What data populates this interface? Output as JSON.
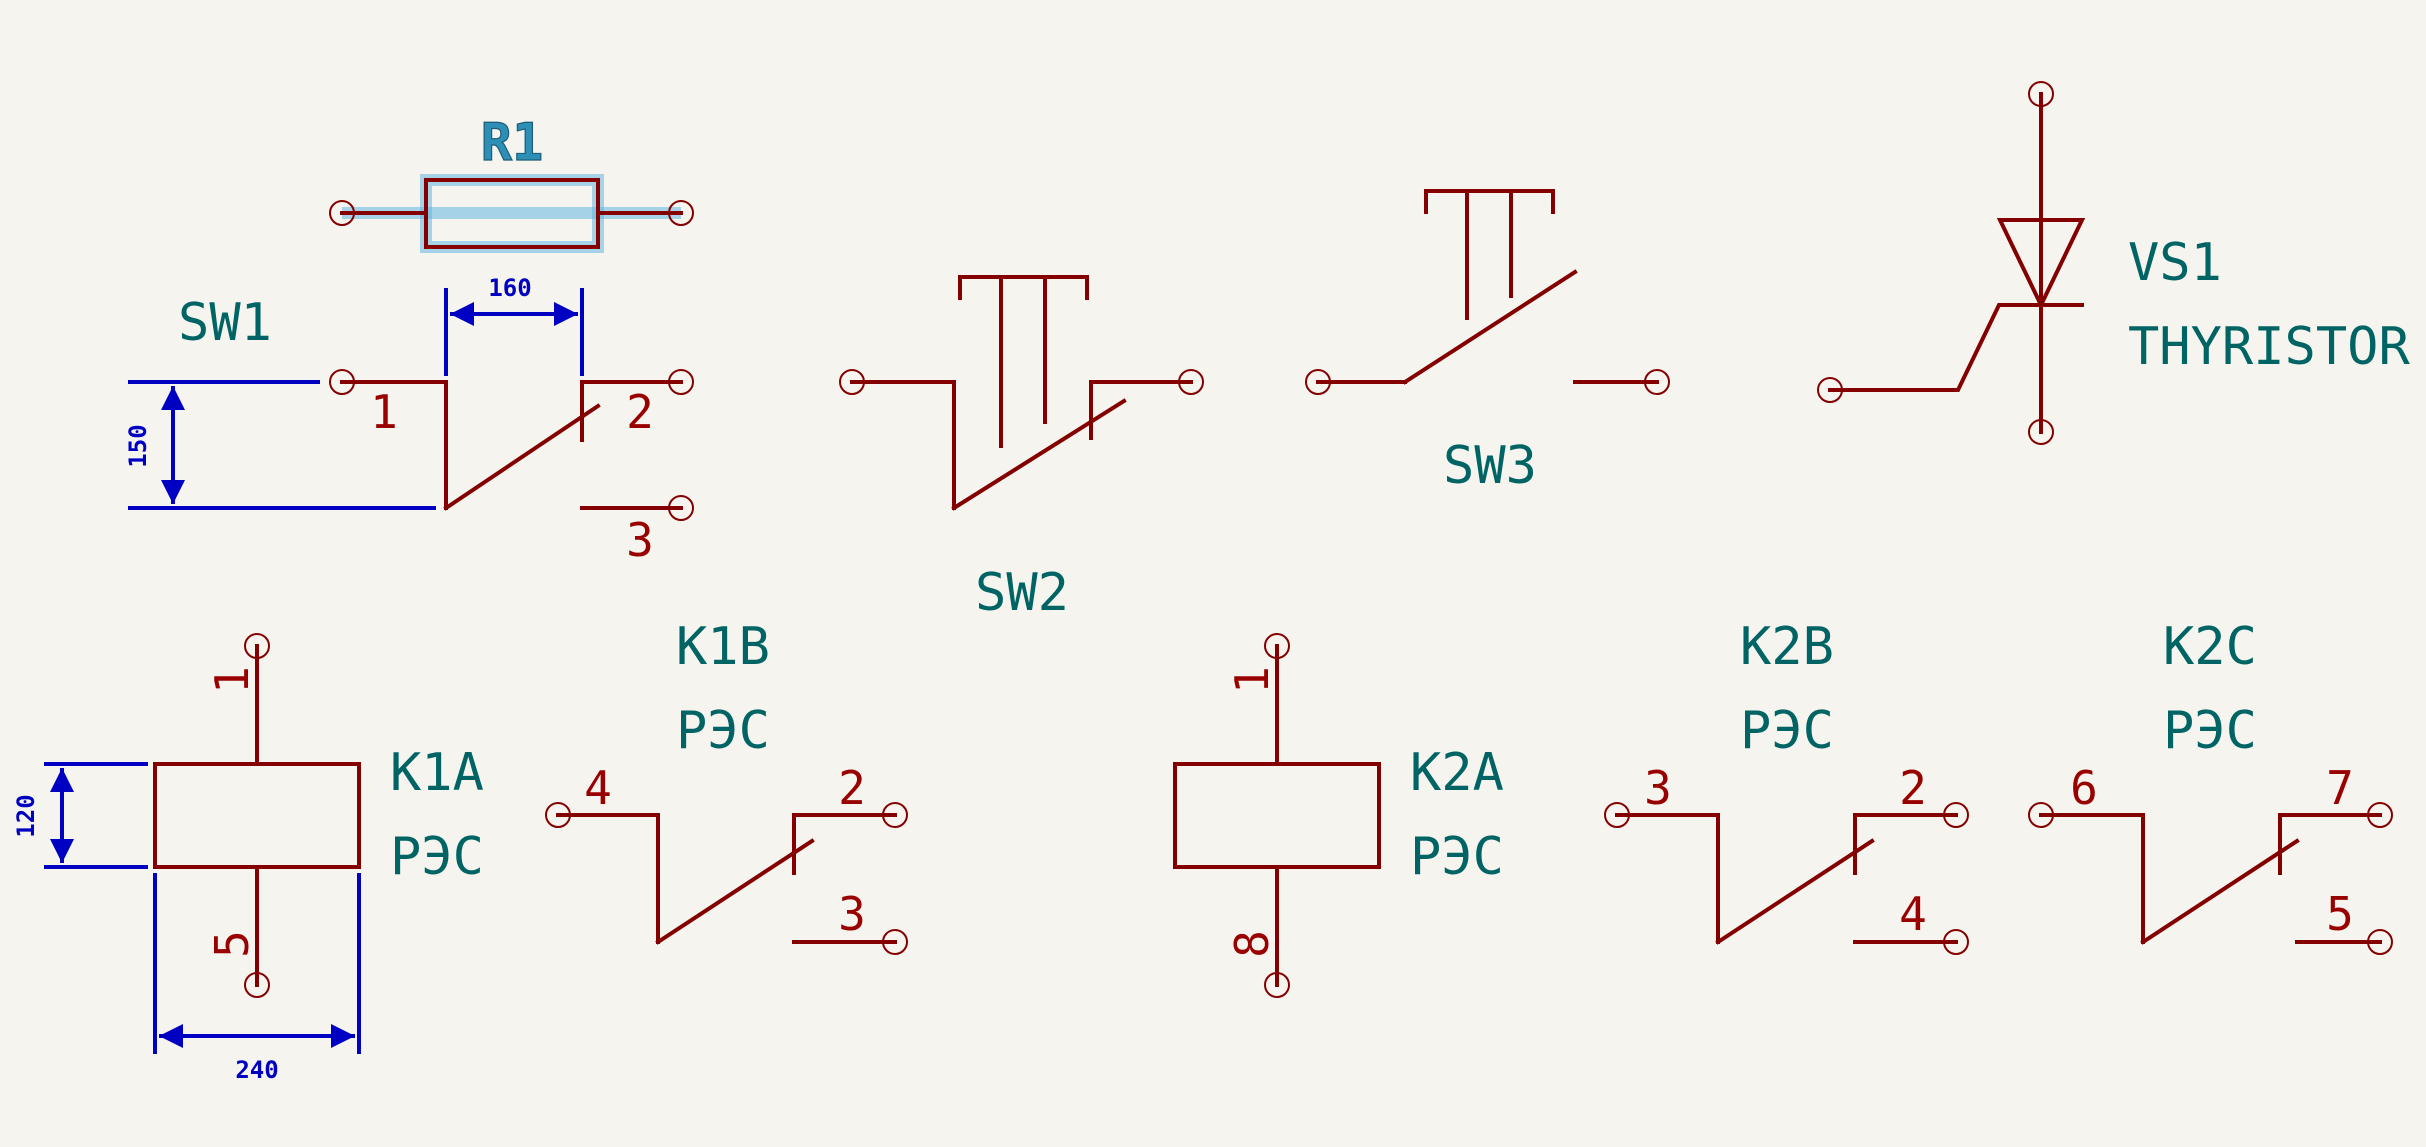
{
  "components": {
    "r1": {
      "ref": "R1"
    },
    "sw1": {
      "ref": "SW1",
      "pins": [
        "1",
        "2",
        "3"
      ]
    },
    "sw2": {
      "ref": "SW2"
    },
    "sw3": {
      "ref": "SW3"
    },
    "vs1": {
      "ref": "VS1",
      "value": "THYRISTOR"
    },
    "k1a": {
      "ref": "K1A",
      "value": "РЭС",
      "pins": [
        "1",
        "5"
      ]
    },
    "k1b": {
      "ref": "K1B",
      "value": "РЭС",
      "pins": [
        "4",
        "2",
        "3"
      ]
    },
    "k2a": {
      "ref": "K2A",
      "value": "РЭС",
      "pins": [
        "1",
        "8"
      ]
    },
    "k2b": {
      "ref": "K2B",
      "value": "РЭС",
      "pins": [
        "3",
        "2",
        "4"
      ]
    },
    "k2c": {
      "ref": "K2C",
      "value": "РЭС",
      "pins": [
        "6",
        "7",
        "5"
      ]
    }
  },
  "dimensions": {
    "sw1_width": "160",
    "sw1_height": "150",
    "k1a_height": "120",
    "k1a_width": "240"
  },
  "colors": {
    "background": "#f5f4ef",
    "symbol": "#840000",
    "pin_number": "#990000",
    "reference": "#006464",
    "dimension": "#0000c2",
    "highlight": "#63b6de"
  }
}
